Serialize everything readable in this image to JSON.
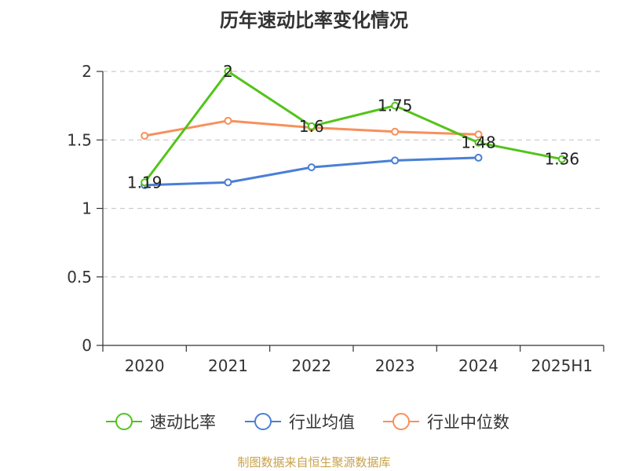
{
  "title": "历年速动比率变化情况",
  "footer": "制图数据来自恒生聚源数据库",
  "chart_data": {
    "type": "line",
    "categories": [
      "2020",
      "2021",
      "2022",
      "2023",
      "2024",
      "2025H1"
    ],
    "ylim": [
      0,
      2
    ],
    "yticks": [
      "0",
      "0.5",
      "1",
      "1.5",
      "2"
    ],
    "grid": true,
    "legend_position": "bottom",
    "series": [
      {
        "name": "速动比率",
        "color": "#52c41a",
        "values": [
          1.19,
          2,
          1.6,
          1.75,
          1.48,
          1.36
        ],
        "labels": [
          "1.19",
          "2",
          "1.6",
          "1.75",
          "1.48",
          "1.36"
        ]
      },
      {
        "name": "行业均值",
        "color": "#4a7fd6",
        "values": [
          1.17,
          1.19,
          1.3,
          1.35,
          1.37,
          null
        ]
      },
      {
        "name": "行业中位数",
        "color": "#f7905b",
        "values": [
          1.53,
          1.64,
          1.59,
          1.56,
          1.54,
          null
        ]
      }
    ]
  }
}
